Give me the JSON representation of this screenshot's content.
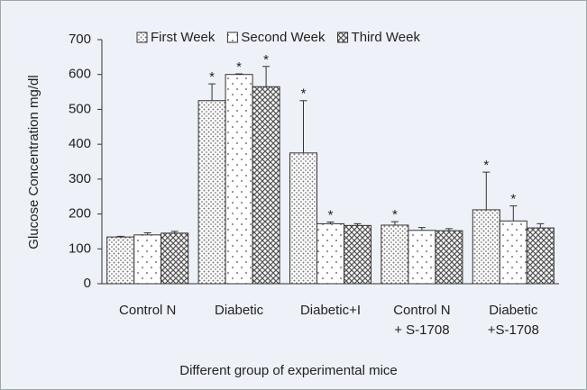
{
  "chart_data": {
    "type": "bar",
    "x_label": "Different group of experimental mice",
    "y_label": "Glucose Concentration mg/dl",
    "categories": [
      [
        "Control N"
      ],
      [
        "Diabetic"
      ],
      [
        "Diabetic+I"
      ],
      [
        "Control N",
        "+ S-1708"
      ],
      [
        "Diabetic",
        "+S-1708"
      ]
    ],
    "series": [
      {
        "name": "First Week",
        "color": "#777777",
        "pattern": "dense-dots",
        "values": [
          134,
          525,
          375,
          168,
          212
        ],
        "errors": [
          2,
          48,
          150,
          10,
          108
        ],
        "markers": [
          null,
          "*",
          "*",
          "*",
          "*"
        ]
      },
      {
        "name": "Second Week",
        "color": "#777777",
        "pattern": "sparse-dots",
        "values": [
          140,
          600,
          172,
          153,
          180
        ],
        "errors": [
          6,
          2,
          5,
          8,
          43
        ],
        "markers": [
          null,
          "*",
          "*",
          null,
          "*"
        ]
      },
      {
        "name": "Third Week",
        "color": "#555555",
        "pattern": "crosshatch",
        "values": [
          145,
          565,
          167,
          152,
          160
        ],
        "errors": [
          5,
          58,
          5,
          6,
          12
        ],
        "markers": [
          null,
          "*",
          null,
          null,
          null
        ]
      }
    ],
    "ylim": [
      0,
      700
    ],
    "yticks": [
      0,
      100,
      200,
      300,
      400,
      500,
      600,
      700
    ],
    "grid": false,
    "legend": "top"
  }
}
